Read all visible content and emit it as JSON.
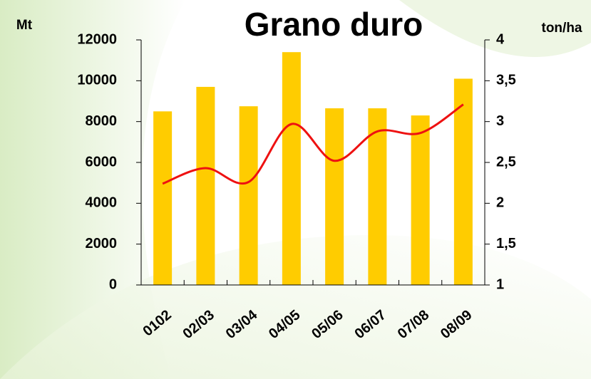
{
  "chart_data": {
    "type": "bar",
    "title": "Grano duro",
    "y_label": "Mt",
    "y2_label": "ton/ha",
    "categories": [
      "0102",
      "02/03",
      "03/04",
      "04/05",
      "05/06",
      "06/07",
      "07/08",
      "08/09"
    ],
    "series": [
      {
        "type": "bar",
        "color": "#ffcc00",
        "values": [
          8500,
          9700,
          8750,
          11400,
          8650,
          8650,
          8300,
          10100
        ]
      },
      {
        "type": "line",
        "axis": "y2",
        "color": "#ee1111",
        "values": [
          2.24,
          2.43,
          2.26,
          2.97,
          2.52,
          2.88,
          2.86,
          3.21
        ]
      }
    ],
    "ylim": [
      0,
      12000
    ],
    "yticks": [
      0,
      2000,
      4000,
      6000,
      8000,
      10000,
      12000
    ],
    "y2lim": [
      1,
      4
    ],
    "y2ticks": [
      1,
      2,
      {
        "value": 1.5,
        "label": "1,5"
      },
      {
        "value": 2.5,
        "label": "2,5"
      },
      3,
      {
        "value": 3.5,
        "label": "3,5"
      },
      4
    ]
  }
}
